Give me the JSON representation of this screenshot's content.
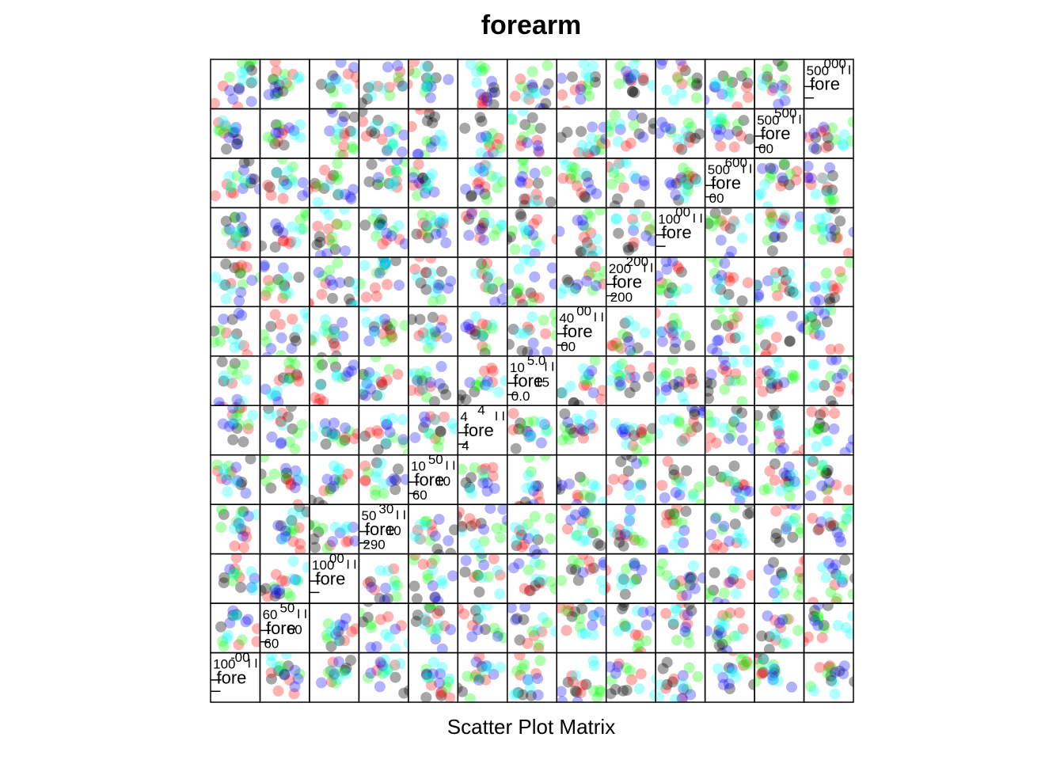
{
  "chart_data": {
    "type": "scatter",
    "subtype": "scatter-matrix",
    "title": "forearm",
    "xlabel": "Scatter Plot Matrix",
    "ylabel": "",
    "n_variables": 13,
    "diagonal_label_fragment": "fore",
    "grid": false,
    "legend": "none",
    "series": [
      {
        "color": "#000000"
      },
      {
        "color": "#FF0000"
      },
      {
        "color": "#00FF00"
      },
      {
        "color": "#0000FF"
      },
      {
        "color": "#00FFFF"
      }
    ],
    "diagonal_tick_labels": [
      [
        "100",
        "-00"
      ],
      [
        "60",
        "50",
        "60",
        "60"
      ],
      [
        "100",
        "00"
      ],
      [
        "50",
        "30",
        "290",
        "10"
      ],
      [
        "10",
        "50",
        "60",
        "10"
      ],
      [
        "4",
        "4",
        "4"
      ],
      [
        "10",
        "5.0",
        "0.0",
        "15"
      ],
      [
        "40",
        "00",
        "00"
      ],
      [
        "200",
        "200",
        "200"
      ],
      [
        "100",
        "00"
      ],
      [
        "500",
        "600",
        "00"
      ],
      [
        "500",
        "500",
        "00"
      ],
      [
        "500",
        "000"
      ]
    ]
  }
}
